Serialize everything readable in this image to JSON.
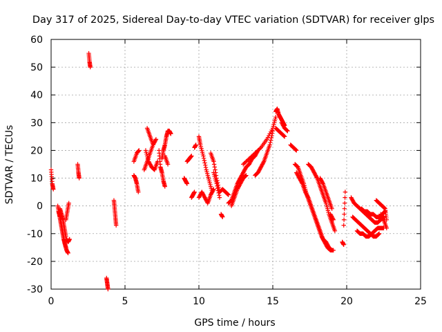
{
  "chart_data": {
    "type": "scatter",
    "title": "Day 317 of 2025, Sidereal Day-to-day VTEC variation (SDTVAR) for receiver glps",
    "xlabel": "GPS time / hours",
    "ylabel": "SDTVAR / TECUs",
    "xlim": [
      0,
      25
    ],
    "ylim": [
      -30,
      60
    ],
    "xticks": [
      0,
      5,
      10,
      15,
      20,
      25
    ],
    "yticks": [
      -30,
      -20,
      -10,
      0,
      10,
      20,
      30,
      40,
      50,
      60
    ],
    "grid": true,
    "marker": "+",
    "marker_color": "#ff0000",
    "segments": [
      {
        "x": [
          0.0,
          0.08,
          0.15
        ],
        "y": [
          13,
          8,
          6
        ]
      },
      {
        "x": [
          0.45,
          0.55,
          0.65,
          0.75,
          0.85,
          0.95,
          1.05,
          1.15
        ],
        "y": [
          0,
          -3,
          -6,
          -9,
          -12,
          -14,
          -16,
          -17
        ]
      },
      {
        "x": [
          0.5,
          0.6,
          0.7,
          0.8,
          0.9,
          1.0
        ],
        "y": [
          -2,
          -4,
          -7,
          -10,
          -13,
          -15
        ]
      },
      {
        "x": [
          0.6,
          0.7,
          0.8,
          0.9,
          1.0
        ],
        "y": [
          -1,
          -3,
          -5,
          -8,
          -11
        ]
      },
      {
        "x": [
          1.0,
          1.1,
          1.2
        ],
        "y": [
          -5,
          -2,
          1
        ]
      },
      {
        "x": [
          1.05,
          1.15,
          1.25
        ],
        "y": [
          -12,
          -13,
          -12
        ]
      },
      {
        "x": [
          1.8,
          1.85,
          1.9
        ],
        "y": [
          15,
          12,
          10
        ]
      },
      {
        "x": [
          2.55,
          2.6,
          2.65
        ],
        "y": [
          55,
          52,
          50
        ]
      },
      {
        "x": [
          3.75,
          3.8,
          3.85
        ],
        "y": [
          -26,
          -28,
          -30
        ]
      },
      {
        "x": [
          4.25,
          4.3,
          4.35,
          4.4
        ],
        "y": [
          2,
          -1,
          -4,
          -7
        ]
      },
      {
        "x": [
          5.6,
          5.7,
          5.8,
          5.9
        ],
        "y": [
          11,
          10,
          8,
          5
        ]
      },
      {
        "x": [
          5.6,
          5.8,
          5.95
        ],
        "y": [
          16,
          19,
          20
        ]
      },
      {
        "x": [
          6.3,
          6.5,
          6.7,
          6.9,
          7.1
        ],
        "y": [
          13,
          16,
          19,
          22,
          24
        ]
      },
      {
        "x": [
          6.4,
          6.6,
          6.8,
          7.0,
          7.2
        ],
        "y": [
          20,
          16,
          14,
          13,
          16
        ]
      },
      {
        "x": [
          6.5,
          6.7,
          6.9
        ],
        "y": [
          28,
          25,
          22
        ]
      },
      {
        "x": [
          7.3,
          7.4,
          7.5,
          7.6,
          7.7
        ],
        "y": [
          20,
          14,
          12,
          9,
          7
        ]
      },
      {
        "x": [
          7.5,
          7.6,
          7.7,
          7.8,
          7.9,
          8.0,
          8.1
        ],
        "y": [
          17,
          20,
          22,
          25,
          27,
          27,
          26
        ]
      },
      {
        "x": [
          7.7,
          7.9
        ],
        "y": [
          18,
          15
        ]
      },
      {
        "x": [
          9.0,
          9.1,
          9.2
        ],
        "y": [
          10,
          9,
          8
        ]
      },
      {
        "x": [
          9.2,
          9.35,
          9.5
        ],
        "y": [
          16,
          17,
          18
        ]
      },
      {
        "x": [
          9.5,
          9.6,
          9.7
        ],
        "y": [
          3,
          4,
          5
        ]
      },
      {
        "x": [
          9.7,
          9.8
        ],
        "y": [
          21,
          22
        ]
      },
      {
        "x": [
          10.0,
          10.1,
          10.3,
          10.5,
          10.7,
          10.9
        ],
        "y": [
          25,
          22,
          18,
          13,
          9,
          5
        ]
      },
      {
        "x": [
          10.0,
          10.2,
          10.4,
          10.6,
          10.8,
          11.0
        ],
        "y": [
          3,
          5,
          3,
          1,
          4,
          6
        ]
      },
      {
        "x": [
          10.8,
          11.0,
          11.2,
          11.4,
          11.6,
          11.8,
          12.0
        ],
        "y": [
          19,
          16,
          10,
          5,
          6,
          5,
          4
        ]
      },
      {
        "x": [
          11.0,
          11.2,
          11.4
        ],
        "y": [
          12,
          8,
          3
        ]
      },
      {
        "x": [
          11.5,
          11.6
        ],
        "y": [
          -3,
          -4
        ]
      },
      {
        "x": [
          12.0,
          12.2,
          12.4,
          12.6,
          12.8,
          13.0,
          13.2,
          13.4,
          13.6,
          13.8,
          14.0
        ],
        "y": [
          1,
          2,
          5,
          8,
          10,
          12,
          14,
          15,
          17,
          18,
          20
        ]
      },
      {
        "x": [
          12.2,
          12.4,
          12.6,
          12.8,
          13.0,
          13.2
        ],
        "y": [
          0,
          3,
          6,
          8,
          10,
          11
        ]
      },
      {
        "x": [
          13.0,
          13.4,
          13.8,
          14.2,
          14.6,
          15.0,
          15.2
        ],
        "y": [
          15,
          17,
          19,
          21,
          24,
          28,
          32
        ]
      },
      {
        "x": [
          13.8,
          14.0,
          14.2,
          14.4,
          14.6,
          14.8,
          15.0
        ],
        "y": [
          11,
          12,
          14,
          16,
          19,
          22,
          27
        ]
      },
      {
        "x": [
          15.2,
          15.3,
          15.4,
          15.5,
          15.6,
          15.7,
          15.8
        ],
        "y": [
          34,
          35,
          33,
          32,
          31,
          30,
          29
        ]
      },
      {
        "x": [
          15.2,
          15.4,
          15.6,
          15.8
        ],
        "y": [
          28,
          27,
          26,
          25
        ]
      },
      {
        "x": [
          15.6,
          15.8,
          16.0
        ],
        "y": [
          30,
          28,
          27
        ]
      },
      {
        "x": [
          16.2,
          16.4,
          16.6
        ],
        "y": [
          22,
          21,
          20
        ]
      },
      {
        "x": [
          16.5,
          16.7,
          16.9,
          17.1,
          17.3,
          17.5,
          17.7,
          17.9,
          18.1,
          18.3,
          18.5,
          18.7,
          18.9,
          19.1
        ],
        "y": [
          15,
          14,
          11,
          8,
          4,
          1,
          -2,
          -5,
          -8,
          -11,
          -13,
          -15,
          -16,
          -16
        ]
      },
      {
        "x": [
          16.6,
          16.8,
          17.0,
          17.2,
          17.4,
          17.6,
          17.8,
          18.0,
          18.2,
          18.4,
          18.6,
          18.8,
          19.0
        ],
        "y": [
          12,
          10,
          8,
          5,
          3,
          0,
          -3,
          -6,
          -9,
          -12,
          -13,
          -15,
          -16
        ]
      },
      {
        "x": [
          17.4,
          17.6,
          17.8,
          18.0,
          18.2,
          18.4,
          18.6,
          18.8,
          19.0,
          19.2
        ],
        "y": [
          15,
          14,
          12,
          10,
          7,
          4,
          1,
          -3,
          -6,
          -9
        ]
      },
      {
        "x": [
          18.2,
          18.4,
          18.6,
          18.8,
          19.0
        ],
        "y": [
          10,
          8,
          5,
          2,
          -1
        ]
      },
      {
        "x": [
          18.9,
          19.1
        ],
        "y": [
          -3,
          -5
        ]
      },
      {
        "x": [
          19.7,
          19.8
        ],
        "y": [
          -13,
          -14
        ]
      },
      {
        "x": [
          19.8,
          19.9
        ],
        "y": [
          -7,
          5
        ]
      },
      {
        "x": [
          20.3,
          20.5,
          20.7,
          20.9,
          21.1,
          21.3,
          21.5,
          21.7,
          21.9,
          22.1,
          22.3,
          22.5
        ],
        "y": [
          3,
          1,
          0,
          -1,
          -2,
          -3,
          -4,
          -5,
          -6,
          -6,
          -5,
          -4
        ]
      },
      {
        "x": [
          20.4,
          20.6,
          20.8,
          21.0,
          21.2,
          21.4,
          21.6,
          21.8,
          22.0,
          22.2
        ],
        "y": [
          -4,
          -5,
          -6,
          -7,
          -8,
          -9,
          -10,
          -11,
          -11,
          -10
        ]
      },
      {
        "x": [
          20.7,
          20.9,
          21.1,
          21.3,
          21.5,
          21.7,
          21.9,
          22.1,
          22.3,
          22.5
        ],
        "y": [
          -9,
          -10,
          -10,
          -11,
          -11,
          -10,
          -9,
          -8,
          -8,
          -8
        ]
      },
      {
        "x": [
          21.0,
          21.2,
          21.4,
          21.6,
          21.8,
          22.0,
          22.2,
          22.4,
          22.6
        ],
        "y": [
          -1,
          -2,
          -2,
          -3,
          -3,
          -4,
          -4,
          -3,
          -2
        ]
      },
      {
        "x": [
          22.0,
          22.2,
          22.4,
          22.6,
          22.7
        ],
        "y": [
          2,
          1,
          0,
          -1,
          -5
        ]
      },
      {
        "x": [
          22.3,
          22.5,
          22.7
        ],
        "y": [
          -3,
          -5,
          -8
        ]
      }
    ]
  }
}
